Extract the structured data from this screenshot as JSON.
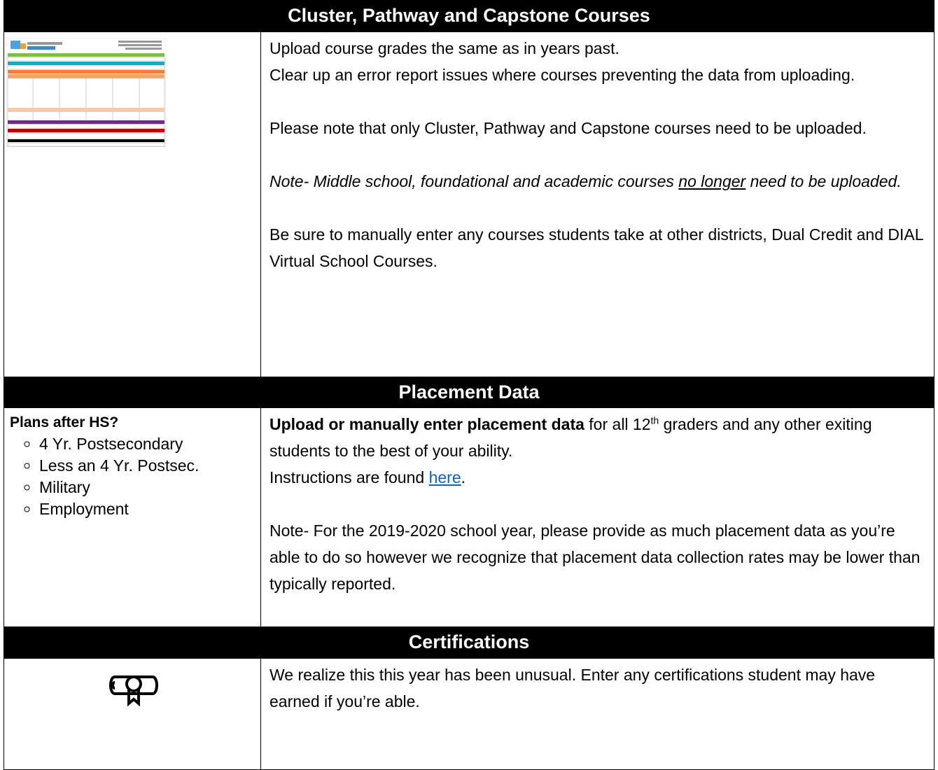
{
  "sections": [
    {
      "title": "Cluster, Pathway and Capstone Courses",
      "paragraphs": [
        "Upload course grades the same as in years past.",
        "Clear up an error report issues where courses preventing the data from uploading.",
        "Please note that only Cluster, Pathway and Capstone courses need to be uploaded."
      ],
      "note": {
        "before": "Note- Middle school, foundational and academic courses ",
        "underline": "no longer",
        "after": " need to be uploaded."
      },
      "closing": "Be sure to manually enter any courses students take at other districts, Dual Credit and DIAL Virtual School Courses."
    },
    {
      "title": "Placement Data",
      "left_heading": "Plans after HS?",
      "left_items": [
        "4 Yr. Postsecondary",
        "Less an 4 Yr. Postsec.",
        "Military",
        "Employment"
      ],
      "bold_lead": "Upload or manually enter placement data",
      "lead_rest_before": " for all 12",
      "lead_sup": "th",
      "lead_rest_after": " graders and any other exiting students to the best of your ability.",
      "instructions_before": "Instructions are found ",
      "instructions_link": "here",
      "instructions_after": ".",
      "note": "Note- For the 2019-2020 school year, please provide as much placement data as you’re able to do so however we recognize that placement data collection rates may be lower than typically reported."
    },
    {
      "title": "Certifications",
      "text": "We realize this this year has been unusual.  Enter any certifications student may have earned if you’re able."
    }
  ]
}
